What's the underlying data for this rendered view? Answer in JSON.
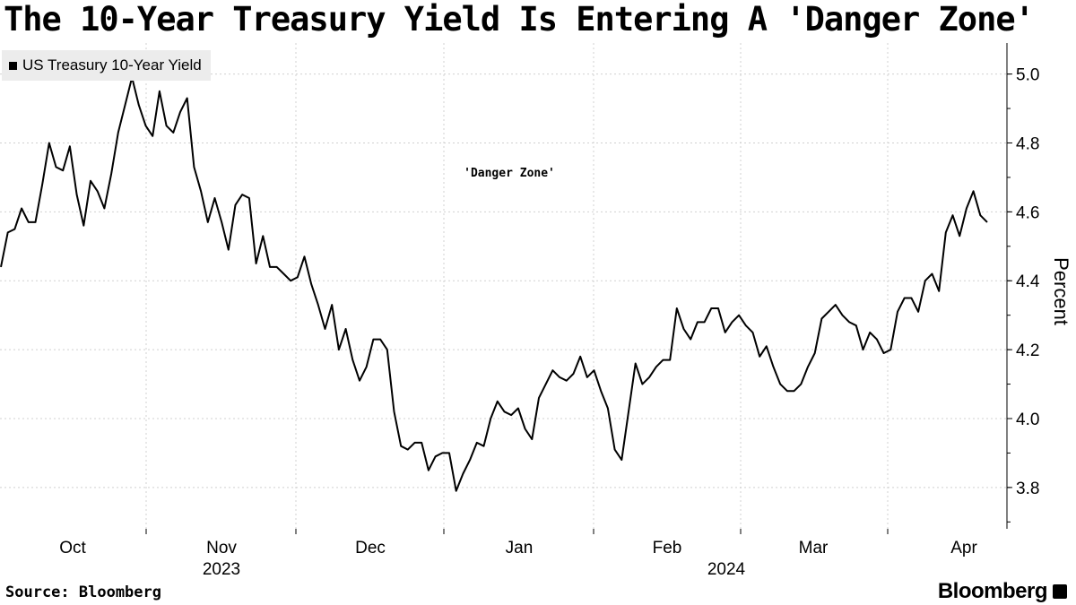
{
  "title": "The 10-Year Treasury Yield Is Entering A 'Danger Zone'",
  "source": "Source: Bloomberg",
  "brand": "Bloomberg",
  "chart_data": {
    "type": "line",
    "ylabel": "Percent",
    "ylim": [
      3.68,
      5.09
    ],
    "yticks": [
      3.8,
      4.0,
      4.2,
      4.4,
      4.6,
      4.8,
      5.0
    ],
    "ytick_labels": [
      "3.8",
      "4.0",
      "4.2",
      "4.4",
      "4.6",
      "4.8",
      "5.0"
    ],
    "month_labels": [
      "Oct",
      "Nov",
      "Dec",
      "Jan",
      "Feb",
      "Mar",
      "Apr"
    ],
    "year_labels": [
      "2023",
      "2024"
    ],
    "annotation": "'Danger Zone'",
    "grid": true,
    "legend_position": "top-left",
    "colors": {
      "line": "#000000",
      "grid": "#d0d0d0"
    },
    "series": [
      {
        "name": "US Treasury 10-Year Yield",
        "x": [
          "2023-09-22",
          "2023-09-25",
          "2023-09-26",
          "2023-09-27",
          "2023-09-28",
          "2023-09-29",
          "2023-10-02",
          "2023-10-03",
          "2023-10-04",
          "2023-10-05",
          "2023-10-06",
          "2023-10-09",
          "2023-10-10",
          "2023-10-11",
          "2023-10-12",
          "2023-10-13",
          "2023-10-16",
          "2023-10-17",
          "2023-10-18",
          "2023-10-19",
          "2023-10-20",
          "2023-10-23",
          "2023-10-24",
          "2023-10-25",
          "2023-10-26",
          "2023-10-27",
          "2023-10-30",
          "2023-10-31",
          "2023-11-01",
          "2023-11-02",
          "2023-11-03",
          "2023-11-06",
          "2023-11-07",
          "2023-11-08",
          "2023-11-09",
          "2023-11-10",
          "2023-11-13",
          "2023-11-14",
          "2023-11-15",
          "2023-11-16",
          "2023-11-17",
          "2023-11-20",
          "2023-11-21",
          "2023-11-22",
          "2023-11-24",
          "2023-11-27",
          "2023-11-28",
          "2023-11-29",
          "2023-11-30",
          "2023-12-01",
          "2023-12-04",
          "2023-12-05",
          "2023-12-06",
          "2023-12-07",
          "2023-12-08",
          "2023-12-11",
          "2023-12-12",
          "2023-12-13",
          "2023-12-14",
          "2023-12-15",
          "2023-12-18",
          "2023-12-19",
          "2023-12-20",
          "2023-12-21",
          "2023-12-22",
          "2023-12-26",
          "2023-12-27",
          "2023-12-28",
          "2023-12-29",
          "2024-01-02",
          "2024-01-03",
          "2024-01-04",
          "2024-01-05",
          "2024-01-08",
          "2024-01-09",
          "2024-01-10",
          "2024-01-11",
          "2024-01-12",
          "2024-01-16",
          "2024-01-17",
          "2024-01-18",
          "2024-01-19",
          "2024-01-22",
          "2024-01-23",
          "2024-01-24",
          "2024-01-25",
          "2024-01-26",
          "2024-01-29",
          "2024-01-30",
          "2024-01-31",
          "2024-02-01",
          "2024-02-02",
          "2024-02-05",
          "2024-02-06",
          "2024-02-07",
          "2024-02-08",
          "2024-02-09",
          "2024-02-12",
          "2024-02-13",
          "2024-02-14",
          "2024-02-15",
          "2024-02-16",
          "2024-02-20",
          "2024-02-21",
          "2024-02-22",
          "2024-02-23",
          "2024-02-26",
          "2024-02-27",
          "2024-02-28",
          "2024-02-29",
          "2024-03-01",
          "2024-03-04",
          "2024-03-05",
          "2024-03-06",
          "2024-03-07",
          "2024-03-08",
          "2024-03-11",
          "2024-03-12",
          "2024-03-13",
          "2024-03-14",
          "2024-03-15",
          "2024-03-18",
          "2024-03-19",
          "2024-03-20",
          "2024-03-21",
          "2024-03-22",
          "2024-03-25",
          "2024-03-26",
          "2024-03-27",
          "2024-03-28",
          "2024-04-01",
          "2024-04-02",
          "2024-04-03",
          "2024-04-04",
          "2024-04-05",
          "2024-04-08",
          "2024-04-09",
          "2024-04-10",
          "2024-04-11",
          "2024-04-12",
          "2024-04-15",
          "2024-04-16",
          "2024-04-17",
          "2024-04-18"
        ],
        "values": [
          4.44,
          4.54,
          4.55,
          4.61,
          4.57,
          4.57,
          4.68,
          4.8,
          4.73,
          4.72,
          4.79,
          4.65,
          4.56,
          4.69,
          4.66,
          4.61,
          4.71,
          4.83,
          4.91,
          4.99,
          4.91,
          4.85,
          4.82,
          4.95,
          4.85,
          4.83,
          4.89,
          4.93,
          4.73,
          4.66,
          4.57,
          4.64,
          4.57,
          4.49,
          4.62,
          4.65,
          4.64,
          4.45,
          4.53,
          4.44,
          4.44,
          4.42,
          4.4,
          4.41,
          4.47,
          4.39,
          4.33,
          4.26,
          4.33,
          4.2,
          4.26,
          4.17,
          4.11,
          4.15,
          4.23,
          4.23,
          4.2,
          4.02,
          3.92,
          3.91,
          3.93,
          3.93,
          3.85,
          3.89,
          3.9,
          3.9,
          3.79,
          3.84,
          3.88,
          3.93,
          3.92,
          4.0,
          4.05,
          4.02,
          4.01,
          4.03,
          3.97,
          3.94,
          4.06,
          4.1,
          4.14,
          4.12,
          4.11,
          4.13,
          4.18,
          4.12,
          4.14,
          4.08,
          4.03,
          3.91,
          3.88,
          4.02,
          4.16,
          4.1,
          4.12,
          4.15,
          4.17,
          4.17,
          4.32,
          4.26,
          4.23,
          4.28,
          4.28,
          4.32,
          4.32,
          4.25,
          4.28,
          4.3,
          4.27,
          4.25,
          4.18,
          4.21,
          4.15,
          4.1,
          4.08,
          4.08,
          4.1,
          4.15,
          4.19,
          4.29,
          4.31,
          4.33,
          4.3,
          4.28,
          4.27,
          4.2,
          4.25,
          4.23,
          4.19,
          4.2,
          4.31,
          4.35,
          4.35,
          4.31,
          4.4,
          4.42,
          4.37,
          4.54,
          4.59,
          4.53,
          4.61,
          4.66,
          4.59,
          4.57
        ]
      }
    ]
  }
}
